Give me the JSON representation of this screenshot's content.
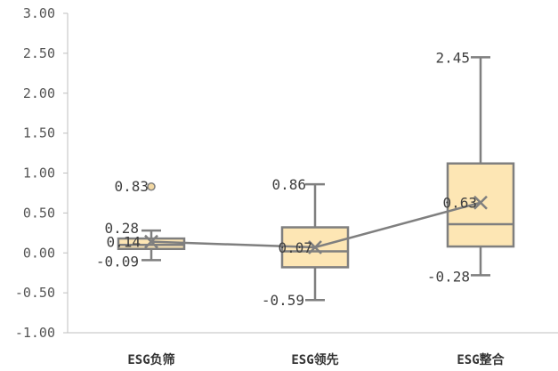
{
  "chart_data": {
    "type": "box",
    "categories": [
      "ESG负筛",
      "ESG领先",
      "ESG整合"
    ],
    "ylim": [
      -1.0,
      3.0
    ],
    "yticks": [
      "-1.00",
      "-0.50",
      "0.00",
      "0.50",
      "1.00",
      "1.50",
      "2.00",
      "2.50",
      "3.00"
    ],
    "ytick_values": [
      -1.0,
      -0.5,
      0.0,
      0.5,
      1.0,
      1.5,
      2.0,
      2.5,
      3.0
    ],
    "grid": false,
    "colors": {
      "box_fill": "#fde6b4",
      "box_stroke": "#7f7f7f",
      "outlier_fill": "#f2d8a3",
      "axis": "#bfbfbf"
    },
    "boxes": [
      {
        "category": "ESG负筛",
        "whisker_low": -0.09,
        "q1": 0.05,
        "median": 0.1,
        "q3": 0.18,
        "whisker_high": 0.28,
        "mean": 0.14,
        "outliers": [
          0.83
        ],
        "labels": {
          "low": "-0.09",
          "high": "0.28",
          "mean": "0.14",
          "outlier": "0.83"
        }
      },
      {
        "category": "ESG领先",
        "whisker_low": -0.59,
        "q1": -0.18,
        "median": 0.02,
        "q3": 0.32,
        "whisker_high": 0.86,
        "mean": 0.07,
        "outliers": [],
        "labels": {
          "low": "-0.59",
          "high": "0.86",
          "mean": "0.07"
        }
      },
      {
        "category": "ESG整合",
        "whisker_low": -0.28,
        "q1": 0.08,
        "median": 0.36,
        "q3": 1.12,
        "whisker_high": 2.45,
        "mean": 0.63,
        "outliers": [],
        "labels": {
          "low": "-0.28",
          "high": "2.45",
          "mean": "0.63"
        }
      }
    ]
  }
}
